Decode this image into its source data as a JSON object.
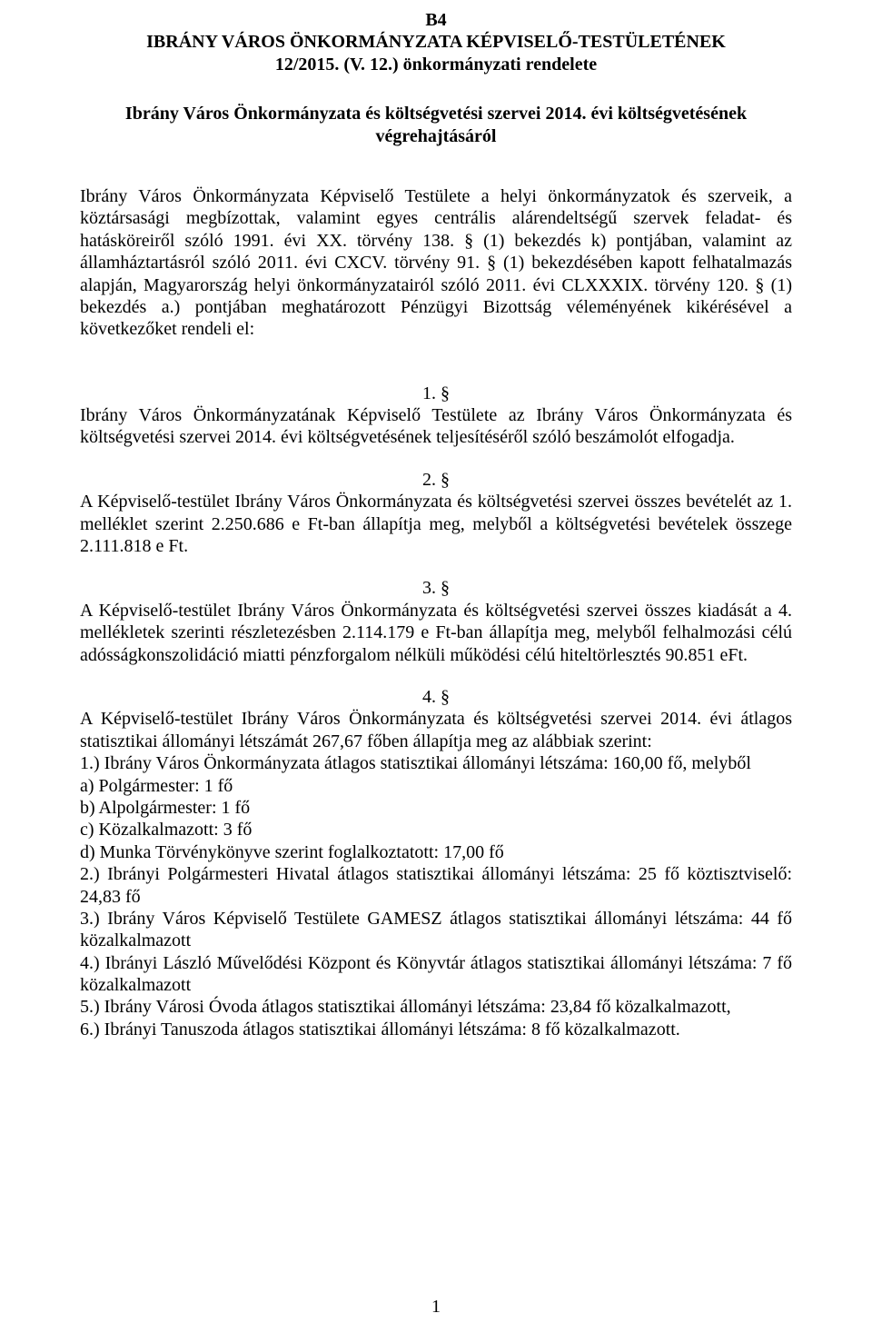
{
  "header": {
    "code": "B4",
    "line1": "IBRÁNY VÁROS ÖNKORMÁNYZATA KÉPVISELŐ-TESTÜLETÉNEK",
    "line2": "12/2015. (V. 12.) önkormányzati rendelete"
  },
  "subtitle": {
    "line1": "Ibrány Város Önkormányzata és költségvetési szervei 2014. évi költségvetésének",
    "line2": "végrehajtásáról"
  },
  "preamble": "Ibrány Város Önkormányzata Képviselő Testülete a helyi önkormányzatok és szerveik, a köztársasági megbízottak, valamint egyes centrális alárendeltségű szervek feladat- és hatásköreiről szóló 1991. évi XX. törvény 138. § (1) bekezdés k) pontjában, valamint az államháztartásról szóló 2011. évi CXCV. törvény 91. § (1) bekezdésében kapott felhatalmazás alapján, Magyarország helyi önkormányzatairól szóló 2011. évi CLXXXIX. törvény 120. § (1) bekezdés a.) pontjában meghatározott Pénzügyi Bizottság véleményének kikérésével a következőket rendeli el:",
  "sections": [
    {
      "num": "1. §",
      "body": "Ibrány Város Önkormányzatának Képviselő Testülete az Ibrány Város Önkormányzata és költségvetési szervei 2014. évi költségvetésének teljesítéséről szóló beszámolót elfogadja."
    },
    {
      "num": "2. §",
      "body": "A Képviselő-testület Ibrány Város Önkormányzata és költségvetési szervei összes bevételét az 1. melléklet szerint 2.250.686 e Ft-ban állapítja meg, melyből a költségvetési bevételek összege 2.111.818 e Ft."
    },
    {
      "num": "3. §",
      "body": "A Képviselő-testület Ibrány Város Önkormányzata és költségvetési szervei összes kiadását a 4. mellékletek szerinti részletezésben 2.114.179 e Ft-ban állapítja meg, melyből felhalmozási célú adósságkonszolidáció miatti pénzforgalom nélküli működési célú hiteltörlesztés 90.851 eFt."
    },
    {
      "num": "4. §",
      "intro": "A Képviselő-testület Ibrány Város Önkormányzata és költségvetési szervei 2014. évi átlagos statisztikai állományi létszámát 267,67 főben állapítja meg az alábbiak szerint:",
      "lines": [
        "1.) Ibrány Város Önkormányzata átlagos statisztikai állományi létszáma: 160,00 fő, melyből",
        "a) Polgármester: 1 fő",
        "b) Alpolgármester: 1 fő",
        "c) Közalkalmazott: 3 fő",
        "d) Munka Törvénykönyve szerint foglalkoztatott: 17,00 fő",
        "2.) Ibrányi Polgármesteri Hivatal átlagos statisztikai állományi létszáma: 25 fő köztisztviselő: 24,83 fő",
        "3.) Ibrány Város Képviselő Testülete GAMESZ átlagos statisztikai állományi létszáma: 44 fő közalkalmazott",
        "4.) Ibrányi László Művelődési Központ és Könyvtár átlagos statisztikai állományi létszáma: 7 fő közalkalmazott",
        "5.) Ibrány Városi Óvoda átlagos statisztikai állományi létszáma: 23,84 fő közalkalmazott,",
        "6.) Ibrányi Tanuszoda átlagos statisztikai állományi létszáma: 8 fő közalkalmazott."
      ]
    }
  ],
  "page_number": "1"
}
